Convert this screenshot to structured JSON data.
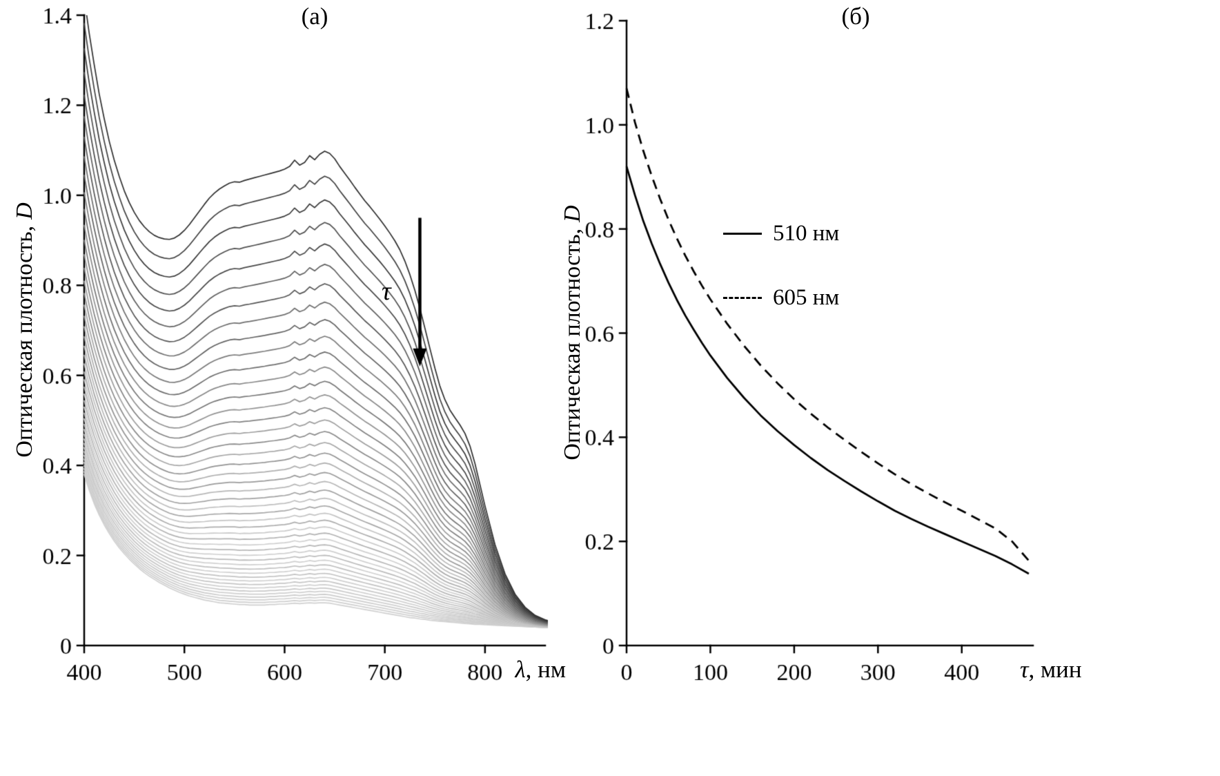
{
  "figure": {
    "background": "#ffffff",
    "axis_color": "#000000",
    "panel_a_label": "(а)",
    "panel_b_label": "(б)"
  },
  "chart_data": [
    {
      "type": "line",
      "panel_label": "(а)",
      "xlabel": {
        "italic": "λ",
        "rest": ", нм"
      },
      "ylabel": {
        "rest": "Оптическая плотность,",
        "italic": "D"
      },
      "xlim": [
        400,
        860
      ],
      "ylim": [
        0,
        1.4
      ],
      "xticks": [
        400,
        500,
        600,
        700,
        800
      ],
      "xtick_labels": [
        "400",
        "500",
        "600",
        "700",
        "800"
      ],
      "yticks": [
        0,
        0.2,
        0.4,
        0.6,
        0.8,
        1.0,
        1.2,
        1.4
      ],
      "ytick_labels": [
        "0",
        "0.2",
        "0.4",
        "0.6",
        "0.8",
        "1.0",
        "1.2",
        "1.4"
      ],
      "grid": false,
      "annotation": {
        "label": "τ",
        "arrow_x": 735,
        "arrow_y_from": 0.95,
        "arrow_y_to": 0.62,
        "label_x": 710,
        "label_y": 0.78
      },
      "spectra_family": {
        "description": "Family of absorption spectra decreasing with time τ; curves are interpolated between top_curve (first spectrum) and bottom_curve (last spectrum)",
        "num_curves": 46,
        "scale_profile": {
          "type": "exponential",
          "k": 2.3
        },
        "color_range": [
          "#2e2e2e",
          "#cfcfcf"
        ],
        "alternation": 30,
        "wavelengths": [
          400,
          405,
          410,
          415,
          420,
          425,
          430,
          435,
          440,
          445,
          450,
          455,
          460,
          465,
          470,
          475,
          480,
          485,
          490,
          495,
          500,
          505,
          510,
          515,
          520,
          525,
          530,
          535,
          540,
          545,
          550,
          555,
          560,
          565,
          570,
          575,
          580,
          585,
          590,
          595,
          600,
          605,
          610,
          615,
          620,
          625,
          630,
          635,
          640,
          645,
          650,
          655,
          660,
          665,
          670,
          675,
          680,
          685,
          690,
          695,
          700,
          705,
          710,
          715,
          720,
          725,
          730,
          735,
          740,
          745,
          750,
          755,
          760,
          765,
          770,
          775,
          780,
          785,
          790,
          795,
          800,
          810,
          820,
          830,
          840,
          850,
          860,
          870
        ],
        "top_curve": [
          1.44,
          1.36,
          1.29,
          1.225,
          1.17,
          1.12,
          1.078,
          1.042,
          1.01,
          0.984,
          0.962,
          0.944,
          0.93,
          0.919,
          0.911,
          0.906,
          0.903,
          0.902,
          0.905,
          0.912,
          0.922,
          0.935,
          0.95,
          0.965,
          0.98,
          0.994,
          1.005,
          1.014,
          1.021,
          1.027,
          1.03,
          1.029,
          1.033,
          1.036,
          1.039,
          1.042,
          1.045,
          1.048,
          1.051,
          1.054,
          1.058,
          1.064,
          1.078,
          1.067,
          1.073,
          1.088,
          1.079,
          1.091,
          1.098,
          1.093,
          1.081,
          1.064,
          1.049,
          1.034,
          1.018,
          1.003,
          0.988,
          0.975,
          0.961,
          0.947,
          0.932,
          0.916,
          0.899,
          0.879,
          0.854,
          0.824,
          0.789,
          0.749,
          0.705,
          0.66,
          0.616,
          0.576,
          0.546,
          0.523,
          0.506,
          0.49,
          0.471,
          0.443,
          0.404,
          0.357,
          0.31,
          0.224,
          0.159,
          0.114,
          0.085,
          0.067,
          0.057,
          0.051
        ],
        "bottom_curve": [
          0.38,
          0.345,
          0.315,
          0.29,
          0.268,
          0.249,
          0.232,
          0.217,
          0.204,
          0.192,
          0.181,
          0.171,
          0.162,
          0.154,
          0.147,
          0.14,
          0.134,
          0.128,
          0.123,
          0.118,
          0.114,
          0.11,
          0.107,
          0.104,
          0.101,
          0.099,
          0.097,
          0.095,
          0.094,
          0.093,
          0.092,
          0.091,
          0.091,
          0.09,
          0.09,
          0.09,
          0.09,
          0.091,
          0.091,
          0.092,
          0.092,
          0.093,
          0.094,
          0.093,
          0.094,
          0.095,
          0.094,
          0.095,
          0.095,
          0.094,
          0.092,
          0.09,
          0.088,
          0.086,
          0.084,
          0.082,
          0.08,
          0.078,
          0.076,
          0.074,
          0.072,
          0.07,
          0.068,
          0.066,
          0.064,
          0.062,
          0.061,
          0.059,
          0.058,
          0.056,
          0.055,
          0.054,
          0.053,
          0.052,
          0.051,
          0.05,
          0.049,
          0.048,
          0.047,
          0.047,
          0.046,
          0.045,
          0.044,
          0.043,
          0.042,
          0.041,
          0.04,
          0.04
        ]
      }
    },
    {
      "type": "line",
      "panel_label": "(б)",
      "xlabel": {
        "italic": "τ",
        "rest": ", мин"
      },
      "ylabel": {
        "rest": "Оптическая плотность,",
        "italic": "D"
      },
      "xlim": [
        0,
        485
      ],
      "ylim": [
        0,
        1.2
      ],
      "xticks": [
        0,
        100,
        200,
        300,
        400
      ],
      "xtick_labels": [
        "0",
        "100",
        "200",
        "300",
        "400"
      ],
      "yticks": [
        0,
        0.2,
        0.4,
        0.6,
        0.8,
        1.0,
        1.2
      ],
      "ytick_labels": [
        "0",
        "0.2",
        "0.4",
        "0.6",
        "0.8",
        "1.0",
        "1.2"
      ],
      "grid": false,
      "legend_position": "upper-left-inside",
      "x": [
        0,
        10,
        20,
        30,
        40,
        50,
        60,
        70,
        80,
        90,
        100,
        120,
        140,
        160,
        180,
        200,
        220,
        240,
        260,
        280,
        300,
        320,
        340,
        360,
        380,
        400,
        420,
        440,
        460,
        480
      ],
      "series": [
        {
          "name": "510 нм",
          "style": "solid",
          "color": "#000000",
          "values": [
            0.92,
            0.865,
            0.815,
            0.772,
            0.733,
            0.697,
            0.664,
            0.634,
            0.607,
            0.581,
            0.557,
            0.514,
            0.476,
            0.442,
            0.412,
            0.385,
            0.36,
            0.337,
            0.316,
            0.296,
            0.277,
            0.259,
            0.243,
            0.228,
            0.214,
            0.2,
            0.186,
            0.172,
            0.156,
            0.138
          ]
        },
        {
          "name": "605 нм",
          "style": "dashed",
          "color": "#000000",
          "values": [
            1.07,
            1.005,
            0.95,
            0.902,
            0.858,
            0.818,
            0.782,
            0.749,
            0.719,
            0.691,
            0.665,
            0.618,
            0.576,
            0.538,
            0.504,
            0.473,
            0.445,
            0.419,
            0.395,
            0.372,
            0.35,
            0.329,
            0.31,
            0.292,
            0.275,
            0.259,
            0.242,
            0.225,
            0.2,
            0.163
          ]
        }
      ]
    }
  ]
}
